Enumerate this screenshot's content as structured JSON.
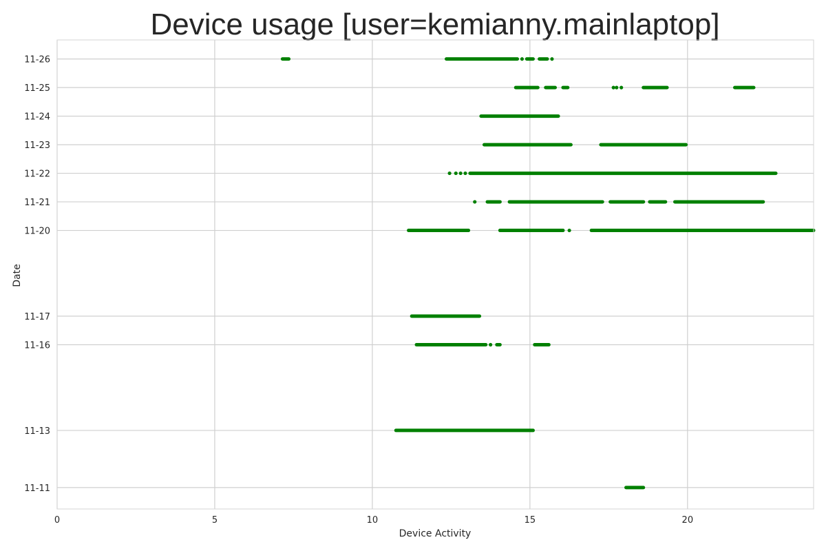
{
  "chart_data": {
    "type": "scatter",
    "title": "Device usage [user=kemianny.mainlaptop]",
    "xlabel": "Device Activity",
    "ylabel": "Date",
    "xlim": [
      0,
      24
    ],
    "ylim": [
      "11-10 06:00",
      "11-26 16:00"
    ],
    "xticks": [
      0,
      5,
      10,
      15,
      20
    ],
    "color": "#008000",
    "grid": true,
    "rows": [
      {
        "date": "11-26",
        "segments": [
          [
            7.15,
            7.35
          ],
          [
            12.35,
            14.6
          ],
          [
            14.9,
            15.1
          ],
          [
            15.3,
            15.55
          ]
        ],
        "points": [
          14.75,
          15.7
        ]
      },
      {
        "date": "11-25",
        "segments": [
          [
            14.55,
            15.25
          ],
          [
            15.5,
            15.8
          ],
          [
            16.05,
            16.2
          ],
          [
            18.6,
            19.35
          ],
          [
            21.5,
            22.1
          ]
        ],
        "points": [
          17.65,
          17.75,
          17.9
        ]
      },
      {
        "date": "11-24",
        "segments": [
          [
            13.45,
            15.9
          ]
        ],
        "points": []
      },
      {
        "date": "11-23",
        "segments": [
          [
            13.55,
            16.3
          ],
          [
            17.25,
            19.95
          ]
        ],
        "points": []
      },
      {
        "date": "11-22",
        "segments": [
          [
            13.1,
            22.8
          ]
        ],
        "points": [
          12.45,
          12.65,
          12.8,
          12.95
        ]
      },
      {
        "date": "11-21",
        "segments": [
          [
            13.65,
            14.05
          ],
          [
            14.35,
            17.3
          ],
          [
            17.55,
            18.6
          ],
          [
            18.8,
            19.3
          ],
          [
            19.6,
            22.4
          ]
        ],
        "points": [
          13.25
        ]
      },
      {
        "date": "11-20",
        "segments": [
          [
            11.15,
            13.05
          ],
          [
            14.05,
            16.05
          ],
          [
            16.95,
            24.0
          ]
        ],
        "points": [
          16.25
        ]
      },
      {
        "date": "11-17",
        "segments": [
          [
            11.25,
            13.4
          ]
        ],
        "points": []
      },
      {
        "date": "11-16",
        "segments": [
          [
            11.4,
            13.6
          ],
          [
            13.95,
            14.05
          ],
          [
            15.15,
            15.6
          ]
        ],
        "points": [
          13.75
        ]
      },
      {
        "date": "11-13",
        "segments": [
          [
            10.75,
            15.1
          ]
        ],
        "points": []
      },
      {
        "date": "11-11",
        "segments": [
          [
            18.05,
            18.6
          ]
        ],
        "points": []
      }
    ]
  }
}
